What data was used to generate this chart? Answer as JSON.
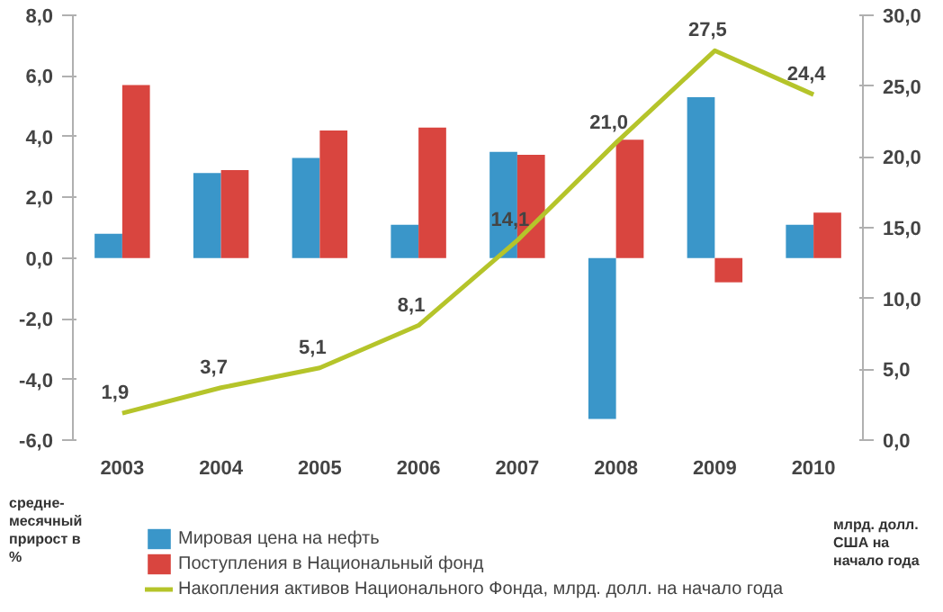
{
  "chart_data": {
    "type": "bar",
    "categories": [
      "2003",
      "2004",
      "2005",
      "2006",
      "2007",
      "2008",
      "2009",
      "2010"
    ],
    "ylabel": "средне-месячный прирост в %",
    "y2label": "млрд. долл. США на начало года",
    "ylim": [
      -6,
      8
    ],
    "yticks": [
      {
        "value": -6,
        "label": "-6,0"
      },
      {
        "value": -4,
        "label": "-4,0"
      },
      {
        "value": -2,
        "label": "-2,0"
      },
      {
        "value": 0,
        "label": "0,0"
      },
      {
        "value": 2,
        "label": "2,0"
      },
      {
        "value": 4,
        "label": "4,0"
      },
      {
        "value": 6,
        "label": "6,0"
      },
      {
        "value": 8,
        "label": "8,0"
      }
    ],
    "y2lim": [
      0,
      30
    ],
    "y2ticks": [
      {
        "value": 0,
        "label": "0,0"
      },
      {
        "value": 5,
        "label": "5,0"
      },
      {
        "value": 10,
        "label": "10,0"
      },
      {
        "value": 15,
        "label": "15,0"
      },
      {
        "value": 20,
        "label": "20,0"
      },
      {
        "value": 25,
        "label": "25,0"
      },
      {
        "value": 30,
        "label": "30,0"
      }
    ],
    "grid": false,
    "legend": "bottom",
    "series": [
      {
        "name": "Мировая цена на нефть",
        "color": "#3a96c9",
        "values": [
          0.8,
          2.8,
          3.3,
          1.1,
          3.5,
          -5.3,
          5.3,
          1.1
        ]
      },
      {
        "name": "Поступления в Национальный фонд",
        "color": "#d9453f",
        "values": [
          5.7,
          2.9,
          4.2,
          4.3,
          3.4,
          3.9,
          -0.8,
          1.5
        ]
      },
      {
        "name": "Накопления активов Национального Фонда, млрд. долл. на начало года",
        "type": "line",
        "axis": "y2",
        "color": "#b5c42a",
        "marker": "none",
        "values": [
          1.9,
          3.7,
          5.1,
          8.1,
          14.1,
          21.0,
          27.5,
          24.4
        ],
        "value_labels": [
          "1,9",
          "3,7",
          "5,1",
          "8,1",
          "14,1",
          "21,0",
          "27,5",
          "24,4"
        ]
      }
    ]
  }
}
